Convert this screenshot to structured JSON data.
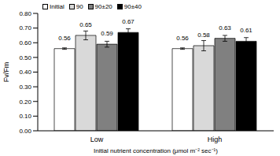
{
  "chart_data": {
    "type": "bar",
    "categories": [
      "Low",
      "High"
    ],
    "x_label": "Initial nutrient concentration (μmol m⁻² sec⁻¹)",
    "y_label": "Fv/Fm",
    "series": [
      {
        "name": "Initial",
        "color": "#ffffff",
        "values": [
          0.56,
          0.56
        ],
        "errors": [
          0.005,
          0.005
        ]
      },
      {
        "name": "90",
        "color": "#d9d9d9",
        "values": [
          0.65,
          0.58
        ],
        "errors": [
          0.03,
          0.035
        ]
      },
      {
        "name": "90±20",
        "color": "#808080",
        "values": [
          0.59,
          0.63
        ],
        "errors": [
          0.02,
          0.02
        ]
      },
      {
        "name": "90±40",
        "color": "#000000",
        "values": [
          0.67,
          0.61
        ],
        "errors": [
          0.025,
          0.025
        ]
      }
    ],
    "ylim": [
      0,
      0.8
    ],
    "yticks": [
      {
        "value": 0,
        "label": "0.00"
      },
      {
        "value": 0.1,
        "label": "0.10"
      },
      {
        "value": 0.2,
        "label": "0.20"
      },
      {
        "value": 0.3,
        "label": "0.30"
      },
      {
        "value": 0.4,
        "label": "0.40"
      },
      {
        "value": 0.5,
        "label": "0.50"
      },
      {
        "value": 0.6,
        "label": "0.60"
      },
      {
        "value": 0.7,
        "label": "0.70"
      },
      {
        "value": 0.8,
        "label": "0.80"
      }
    ],
    "data_labels": true,
    "legend": "upper left",
    "grid": false
  }
}
